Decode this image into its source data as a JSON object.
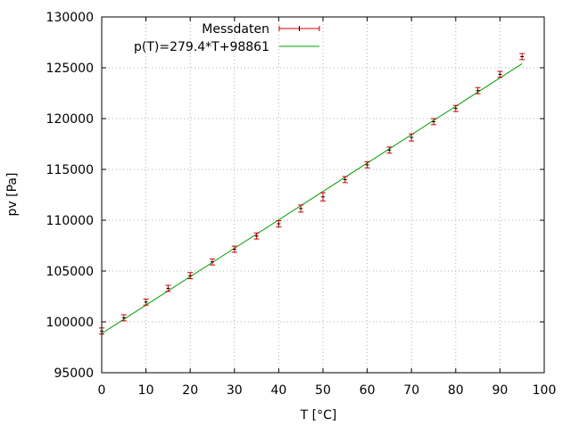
{
  "chart_data": {
    "type": "scatter",
    "xlabel": "T [°C]",
    "ylabel": "pv [Pa]",
    "xlim": [
      0,
      100
    ],
    "ylim": [
      95000,
      130000
    ],
    "x_ticks": [
      0,
      10,
      20,
      30,
      40,
      50,
      60,
      70,
      80,
      90,
      100
    ],
    "y_ticks": [
      95000,
      100000,
      105000,
      110000,
      115000,
      120000,
      125000,
      130000
    ],
    "grid": true,
    "legend_position": "top-center",
    "series": [
      {
        "name": "Messdaten",
        "kind": "points-with-errorbars",
        "color": "#cc0000",
        "x": [
          0,
          5,
          10,
          15,
          20,
          25,
          30,
          35,
          40,
          45,
          50,
          55,
          60,
          65,
          70,
          75,
          80,
          85,
          90,
          95
        ],
        "y": [
          99100,
          100400,
          101950,
          103300,
          104550,
          105900,
          107150,
          108450,
          109650,
          111150,
          112300,
          114000,
          115450,
          116900,
          118150,
          119700,
          121000,
          122750,
          124350,
          126100
        ],
        "yerr": [
          300,
          300,
          300,
          300,
          300,
          300,
          300,
          300,
          300,
          350,
          400,
          300,
          300,
          300,
          350,
          300,
          300,
          300,
          300,
          300
        ]
      },
      {
        "name": "p(T)=279.4*T+98861",
        "kind": "line",
        "color": "#00a000",
        "slope": 279.4,
        "intercept": 98861,
        "x_range": [
          0,
          95
        ]
      }
    ]
  }
}
